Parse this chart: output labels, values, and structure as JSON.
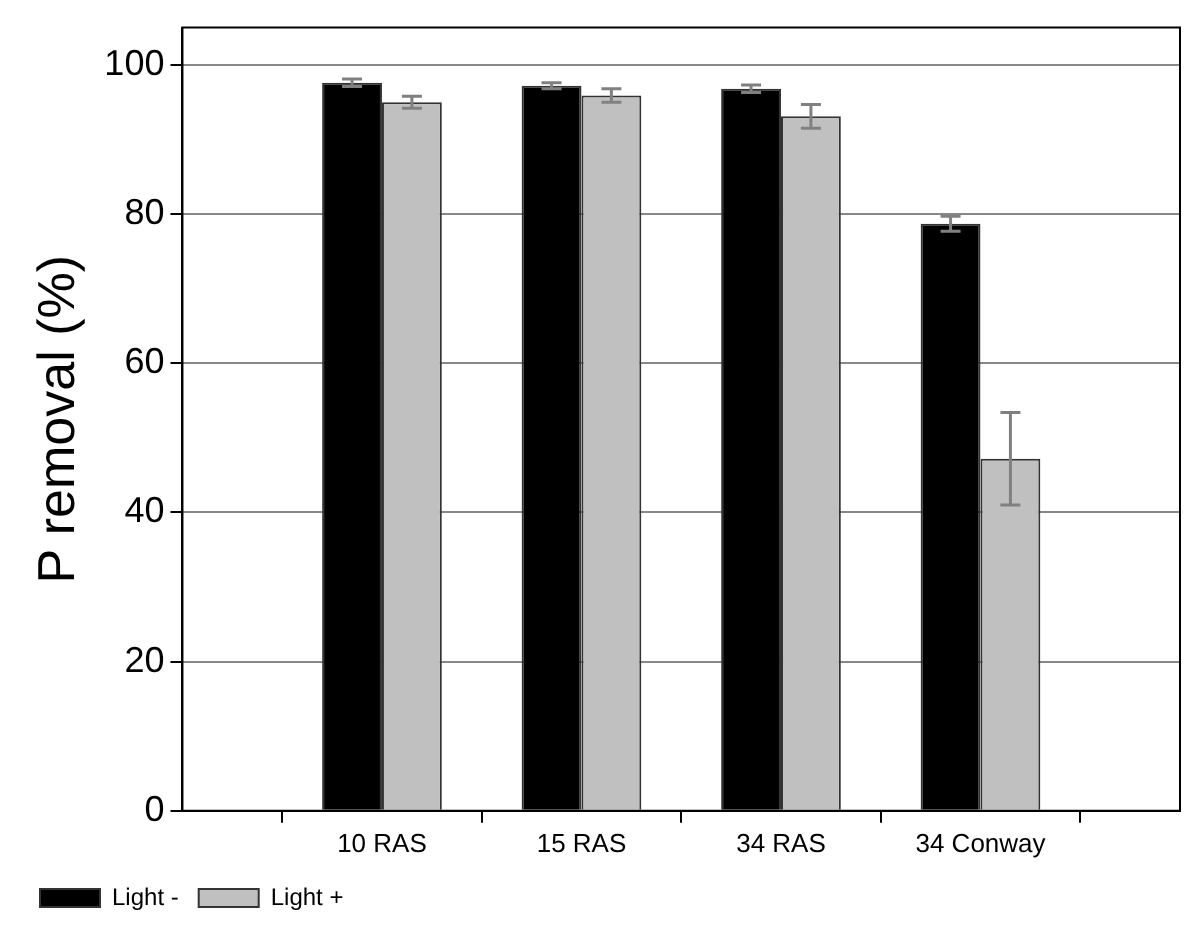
{
  "chart_data": {
    "type": "bar",
    "ylabel": "P removal (%)",
    "categories": [
      "10 RAS",
      "15 RAS",
      "34 RAS",
      "34 Conway"
    ],
    "series": [
      {
        "name": "Light -",
        "color": "#000000",
        "values": [
          97.6,
          97.2,
          96.8,
          78.7
        ],
        "errors": [
          0.5,
          0.4,
          0.5,
          1.0
        ]
      },
      {
        "name": "Light +",
        "color": "#c0c0c0",
        "values": [
          95.0,
          95.9,
          93.1,
          47.2
        ],
        "errors": [
          0.8,
          0.9,
          1.6,
          6.2
        ]
      }
    ],
    "ylim": [
      0,
      105
    ],
    "yticks": [
      0,
      20,
      40,
      60,
      80,
      100
    ],
    "grid": "y",
    "legend": "bottom left"
  }
}
